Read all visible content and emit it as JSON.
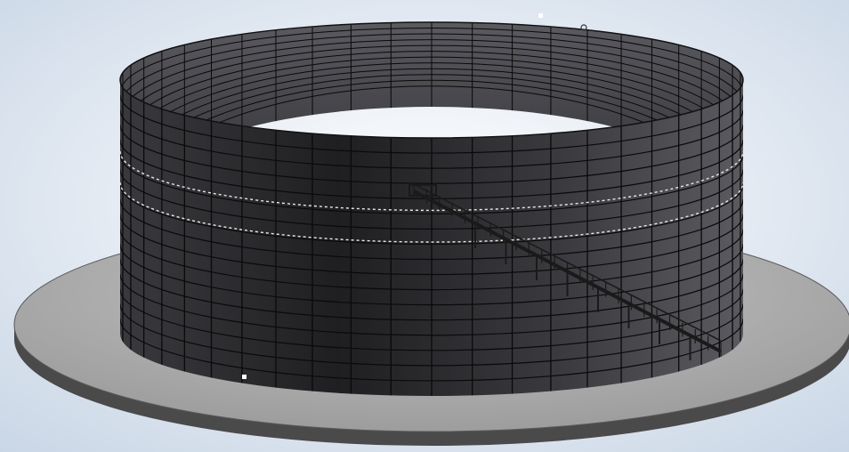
{
  "scene": {
    "subject": "tank",
    "colors": {
      "background_center": "#ffffff",
      "background_edge": "#c9d6e6",
      "base_top": "#9a9a9a",
      "base_top_light": "#c4c4c4",
      "base_rim": "#4a4a4a",
      "wall_dark": "#1f1f22",
      "wall_mid": "#3a3a3e",
      "wall_light": "#5a5a60",
      "interior": "#2c2c30",
      "grid_line": "#0a0a0a",
      "seam_line": "#e8e8e8",
      "staircase": "#1a1a1a"
    },
    "grid": {
      "columns": 48,
      "rows": 17
    }
  }
}
